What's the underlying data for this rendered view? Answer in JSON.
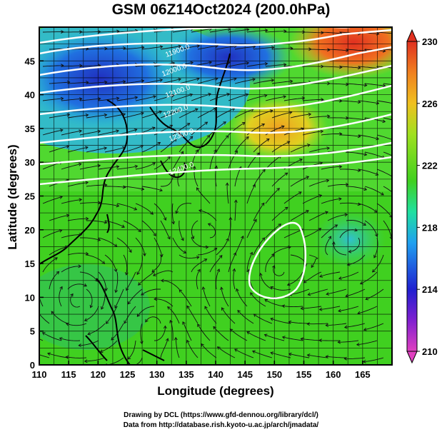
{
  "title": "GSM 06Z14Oct2024 (200.0hPa)",
  "xlabel": "Longitude (degrees)",
  "ylabel": "Latitude (degrees)",
  "credit_line1": "Drawing by DCL (https://www.gfd-dennou.org/library/dcl/)",
  "credit_line2": "Data from http://database.rish.kyoto-u.ac.jp/arch/jmadata/",
  "chart_data": {
    "type": "heatmap",
    "variable": "temperature with streamlines and geopotential height contours",
    "xlim": [
      110,
      170
    ],
    "ylim": [
      0,
      50
    ],
    "x_ticks": [
      110,
      115,
      120,
      125,
      130,
      135,
      140,
      145,
      150,
      155,
      160,
      165
    ],
    "y_ticks": [
      0,
      5,
      10,
      15,
      20,
      25,
      30,
      35,
      40,
      45
    ],
    "colorbar": {
      "min": 210,
      "max": 230,
      "ticks": [
        210,
        214,
        218,
        222,
        226,
        230
      ],
      "colors": [
        "#e040c0",
        "#2020d0",
        "#20a0f0",
        "#20e0a0",
        "#40d020",
        "#a0e020",
        "#f0c020",
        "#f08020",
        "#e03020"
      ]
    },
    "contour_labels": [
      "11900.0",
      "12000.0",
      "12100.0",
      "12200.0",
      "12300.0",
      "12400.0"
    ],
    "grid": true
  }
}
